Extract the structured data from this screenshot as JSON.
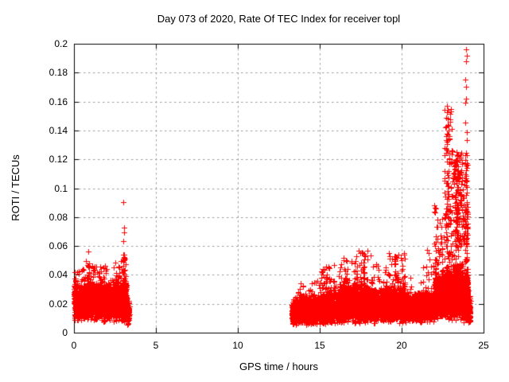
{
  "chart_data": {
    "type": "scatter",
    "title": "Day 073 of 2020, Rate Of TEC Index for receiver topl",
    "xlabel": "GPS time / hours",
    "ylabel": "ROTI / TECUs",
    "xlim": [
      0,
      25
    ],
    "ylim": [
      0,
      0.2
    ],
    "xticks": [
      0,
      5,
      10,
      15,
      20,
      25
    ],
    "xtick_labels": [
      "0",
      "5",
      "10",
      "15",
      "20",
      "25"
    ],
    "yticks": [
      0,
      0.02,
      0.04,
      0.06,
      0.08,
      0.1,
      0.12,
      0.14,
      0.16,
      0.18,
      0.2
    ],
    "ytick_labels": [
      "0",
      "0.02",
      "0.04",
      "0.06",
      "0.08",
      "0.1",
      "0.12",
      "0.14",
      "0.16",
      "0.18",
      "0.2"
    ],
    "grid": true,
    "grid_style": "dashed",
    "legend": "none",
    "colors": {
      "marker": "#ff0000",
      "grid": "#9c9c9c",
      "axis": "#000000",
      "background": "#ffffff"
    },
    "marker": {
      "shape": "plus",
      "size": 7,
      "color": "#ff0000"
    },
    "series": [
      {
        "name": "ROTI",
        "seed": 73,
        "segments": [
          {
            "x0": 0.0,
            "x1": 0.7,
            "n": 520,
            "y0": 0.008,
            "y1": 0.035,
            "tail": 0.044,
            "tail_frac": 0.025
          },
          {
            "x0": 0.7,
            "x1": 1.2,
            "n": 400,
            "y0": 0.008,
            "y1": 0.037,
            "tail": 0.052,
            "tail_frac": 0.03
          },
          {
            "x0": 1.2,
            "x1": 2.2,
            "n": 720,
            "y0": 0.007,
            "y1": 0.036,
            "tail": 0.047,
            "tail_frac": 0.025
          },
          {
            "x0": 2.2,
            "x1": 2.95,
            "n": 520,
            "y0": 0.007,
            "y1": 0.036,
            "tail": 0.05,
            "tail_frac": 0.03
          },
          {
            "x0": 2.95,
            "x1": 3.2,
            "n": 260,
            "y0": 0.006,
            "y1": 0.04,
            "tail": 0.055,
            "tail_frac": 0.05
          },
          {
            "x0": 3.2,
            "x1": 3.38,
            "n": 90,
            "y0": 0.005,
            "y1": 0.022,
            "tail": 0.028,
            "tail_frac": 0.02
          },
          {
            "x0": 13.3,
            "x1": 14.0,
            "n": 430,
            "y0": 0.005,
            "y1": 0.024,
            "tail": 0.034,
            "tail_frac": 0.03
          },
          {
            "x0": 14.0,
            "x1": 15.0,
            "n": 560,
            "y0": 0.005,
            "y1": 0.026,
            "tail": 0.038,
            "tail_frac": 0.03
          },
          {
            "x0": 15.0,
            "x1": 16.2,
            "n": 660,
            "y0": 0.005,
            "y1": 0.03,
            "tail": 0.048,
            "tail_frac": 0.04
          },
          {
            "x0": 16.2,
            "x1": 17.2,
            "n": 620,
            "y0": 0.006,
            "y1": 0.034,
            "tail": 0.053,
            "tail_frac": 0.05
          },
          {
            "x0": 17.2,
            "x1": 18.2,
            "n": 620,
            "y0": 0.006,
            "y1": 0.034,
            "tail": 0.058,
            "tail_frac": 0.05
          },
          {
            "x0": 18.2,
            "x1": 19.2,
            "n": 560,
            "y0": 0.006,
            "y1": 0.032,
            "tail": 0.048,
            "tail_frac": 0.04
          },
          {
            "x0": 19.2,
            "x1": 20.2,
            "n": 560,
            "y0": 0.006,
            "y1": 0.034,
            "tail": 0.055,
            "tail_frac": 0.05
          },
          {
            "x0": 20.2,
            "x1": 21.3,
            "n": 560,
            "y0": 0.007,
            "y1": 0.028,
            "tail": 0.04,
            "tail_frac": 0.03
          },
          {
            "x0": 21.3,
            "x1": 22.0,
            "n": 420,
            "y0": 0.007,
            "y1": 0.03,
            "tail": 0.06,
            "tail_frac": 0.05
          },
          {
            "x0": 22.0,
            "x1": 22.6,
            "n": 420,
            "y0": 0.008,
            "y1": 0.04,
            "tail": 0.1,
            "tail_frac": 0.12
          },
          {
            "x0": 22.6,
            "x1": 23.1,
            "n": 460,
            "y0": 0.008,
            "y1": 0.045,
            "tail": 0.155,
            "tail_frac": 0.18,
            "tail_pow": 1.1
          },
          {
            "x0": 23.1,
            "x1": 23.6,
            "n": 500,
            "y0": 0.008,
            "y1": 0.05,
            "tail": 0.125,
            "tail_frac": 0.2,
            "tail_pow": 0.8
          },
          {
            "x0": 23.6,
            "x1": 24.05,
            "n": 500,
            "y0": 0.006,
            "y1": 0.045,
            "tail": 0.125,
            "tail_frac": 0.16,
            "tail_pow": 0.8
          },
          {
            "x0": 24.05,
            "x1": 24.2,
            "n": 120,
            "y0": 0.005,
            "y1": 0.025,
            "tail": 0.04,
            "tail_frac": 0.03
          }
        ],
        "spike_columns": [
          {
            "x": 0.08,
            "jitter": 0.06,
            "y0": 0.03,
            "y1": 0.042,
            "n": 8
          },
          {
            "x": 0.9,
            "jitter": 0.07,
            "y0": 0.034,
            "y1": 0.052,
            "n": 10
          },
          {
            "x": 1.15,
            "jitter": 0.05,
            "y0": 0.03,
            "y1": 0.047,
            "n": 8
          },
          {
            "x": 1.62,
            "jitter": 0.09,
            "y0": 0.03,
            "y1": 0.046,
            "n": 10
          },
          {
            "x": 2.6,
            "jitter": 0.09,
            "y0": 0.03,
            "y1": 0.05,
            "n": 10
          },
          {
            "x": 3.05,
            "jitter": 0.05,
            "y0": 0.034,
            "y1": 0.056,
            "n": 12
          },
          {
            "x": 15.3,
            "jitter": 0.16,
            "y0": 0.03,
            "y1": 0.046,
            "n": 12
          },
          {
            "x": 16.6,
            "jitter": 0.16,
            "y0": 0.03,
            "y1": 0.051,
            "n": 12
          },
          {
            "x": 17.6,
            "jitter": 0.16,
            "y0": 0.032,
            "y1": 0.057,
            "n": 14
          },
          {
            "x": 19.7,
            "jitter": 0.13,
            "y0": 0.03,
            "y1": 0.055,
            "n": 12
          },
          {
            "x": 22.1,
            "jitter": 0.1,
            "y0": 0.03,
            "y1": 0.06,
            "n": 10
          },
          {
            "x": 22.8,
            "jitter": 0.07,
            "y0": 0.04,
            "y1": 0.15,
            "n": 35
          },
          {
            "x": 23.35,
            "jitter": 0.12,
            "y0": 0.06,
            "y1": 0.12,
            "n": 40
          },
          {
            "x": 23.95,
            "jitter": 0.06,
            "y0": 0.05,
            "y1": 0.125,
            "n": 30
          }
        ],
        "outliers": [
          [
            0.87,
            0.056
          ],
          [
            3.0,
            0.0905
          ],
          [
            3.04,
            0.073
          ],
          [
            3.04,
            0.0695
          ],
          [
            3.02,
            0.0635
          ],
          [
            22.73,
            0.1485
          ],
          [
            22.75,
            0.157
          ],
          [
            22.78,
            0.1525
          ],
          [
            22.73,
            0.1275
          ],
          [
            22.75,
            0.132
          ],
          [
            22.78,
            0.1375
          ],
          [
            23.88,
            0.1595
          ],
          [
            23.9,
            0.175
          ],
          [
            23.93,
            0.1705
          ],
          [
            23.95,
            0.162
          ],
          [
            23.93,
            0.188
          ],
          [
            23.95,
            0.196
          ],
          [
            23.96,
            0.1915
          ],
          [
            23.98,
            0.139
          ],
          [
            23.99,
            0.1335
          ],
          [
            23.9,
            0.1455
          ]
        ]
      }
    ]
  }
}
